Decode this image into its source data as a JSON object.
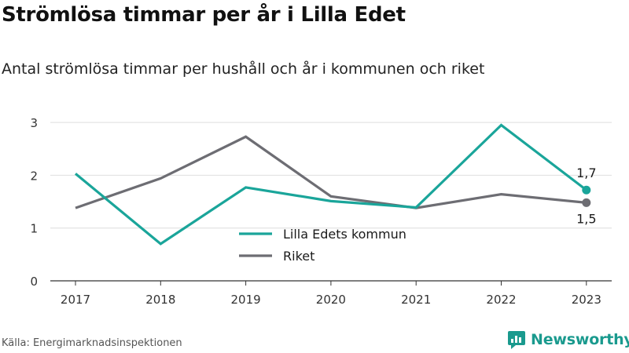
{
  "title": "Strömlösa timmar per år i Lilla Edet",
  "subtitle": "Antal strömlösa timmar per hushåll och år i kommunen och riket",
  "source": "Källa: Energimarknadsinspektionen",
  "brand": {
    "name": "Newsworthy",
    "icon": "newsworthy-logo-icon",
    "color": "#1a9a8e"
  },
  "chart_data": {
    "type": "line",
    "x": [
      "2017",
      "2018",
      "2019",
      "2020",
      "2021",
      "2022",
      "2023"
    ],
    "y_ticks": [
      "0",
      "1",
      "2",
      "3"
    ],
    "ylim": [
      0,
      3.2
    ],
    "grid": true,
    "legend_position": "center-bottom",
    "series": [
      {
        "name": "Lilla Edets kommun",
        "color": "#1aa59a",
        "values": [
          2.03,
          0.7,
          1.77,
          1.51,
          1.39,
          2.95,
          1.72
        ],
        "end_label": "1,7"
      },
      {
        "name": "Riket",
        "color": "#6d6d73",
        "values": [
          1.38,
          1.94,
          2.73,
          1.6,
          1.38,
          1.64,
          1.48
        ],
        "end_label": "1,5"
      }
    ]
  }
}
